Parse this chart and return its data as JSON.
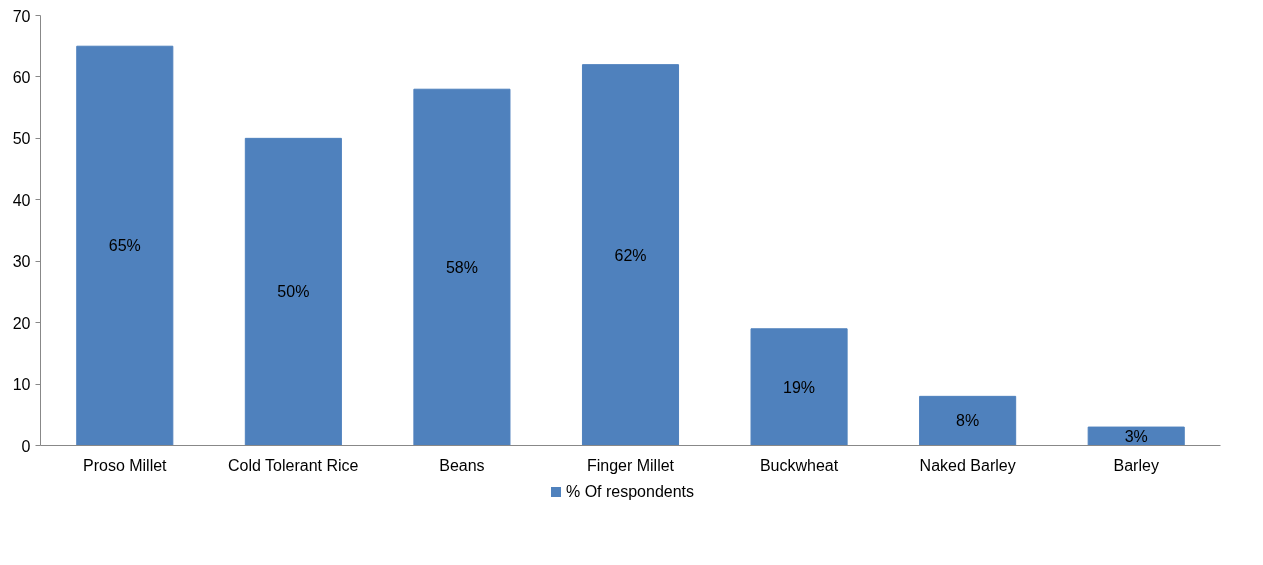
{
  "chart_data": {
    "type": "bar",
    "categories": [
      "Proso Millet",
      "Cold Tolerant Rice",
      "Beans",
      "Finger Millet",
      "Buckwheat",
      "Naked Barley",
      "Barley"
    ],
    "series": [
      {
        "name": "% Of respondents",
        "color": "#4f81bd",
        "values": [
          65,
          50,
          58,
          62,
          19,
          8,
          3
        ],
        "value_labels": [
          "65%",
          "50%",
          "58%",
          "62%",
          "19%",
          "8%",
          "3%"
        ]
      }
    ],
    "ylim": [
      0,
      70
    ],
    "yticks": [
      0,
      10,
      20,
      30,
      40,
      50,
      60,
      70
    ],
    "grid": false,
    "legend": "bottom"
  }
}
